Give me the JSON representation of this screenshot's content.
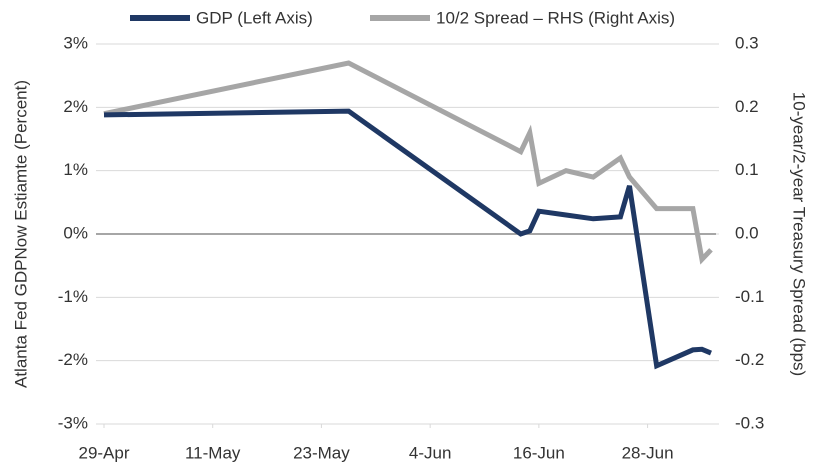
{
  "chart_data": {
    "type": "line",
    "y_label": "Atlanta Fed GDPNow Estiamte (Percent)",
    "y2_label": "10-year/2-year Treasury Spread (bps)",
    "x": [
      "29-Apr",
      "26-May",
      "14-Jun",
      "15-Jun",
      "16-Jun",
      "19-Jun",
      "22-Jun",
      "25-Jun",
      "26-Jun",
      "29-Jun",
      "3-Jul",
      "4-Jul",
      "5-Jul"
    ],
    "series": [
      {
        "name": "GDP (Left Axis)",
        "color": "#1f3864",
        "values": [
          1.88,
          1.94,
          0.0,
          0.05,
          0.36,
          0.3,
          0.24,
          0.27,
          0.76,
          -2.08,
          -1.83,
          -1.82,
          -1.88
        ]
      },
      {
        "name": "10/2 Spread – RHS (Right Axis)",
        "color": "#a6a6a6",
        "axis": "y2",
        "values": [
          0.19,
          0.27,
          0.13,
          0.16,
          0.08,
          0.1,
          0.09,
          0.12,
          0.09,
          0.04,
          0.04,
          -0.04,
          -0.025
        ]
      }
    ],
    "xlim": [
      "29-Apr",
      "5-Jul"
    ],
    "xticks": [
      "29-Apr",
      "11-May",
      "23-May",
      "4-Jun",
      "16-Jun",
      "28-Jun"
    ],
    "ylim": [
      -3,
      3
    ],
    "yticks": [
      {
        "value": -3,
        "label": "-3%"
      },
      {
        "value": -2,
        "label": "-2%"
      },
      {
        "value": -1,
        "label": "-1%"
      },
      {
        "value": 0,
        "label": "0%"
      },
      {
        "value": 1,
        "label": "1%"
      },
      {
        "value": 2,
        "label": "2%"
      },
      {
        "value": 3,
        "label": "3%"
      }
    ],
    "y2lim": [
      -0.3,
      0.3
    ],
    "y2ticks": [
      -0.3,
      -0.2,
      -0.1,
      {
        "value": 0,
        "label": "0.0"
      },
      0.1,
      0.2,
      0.3
    ],
    "grid": true,
    "legend": "top"
  }
}
